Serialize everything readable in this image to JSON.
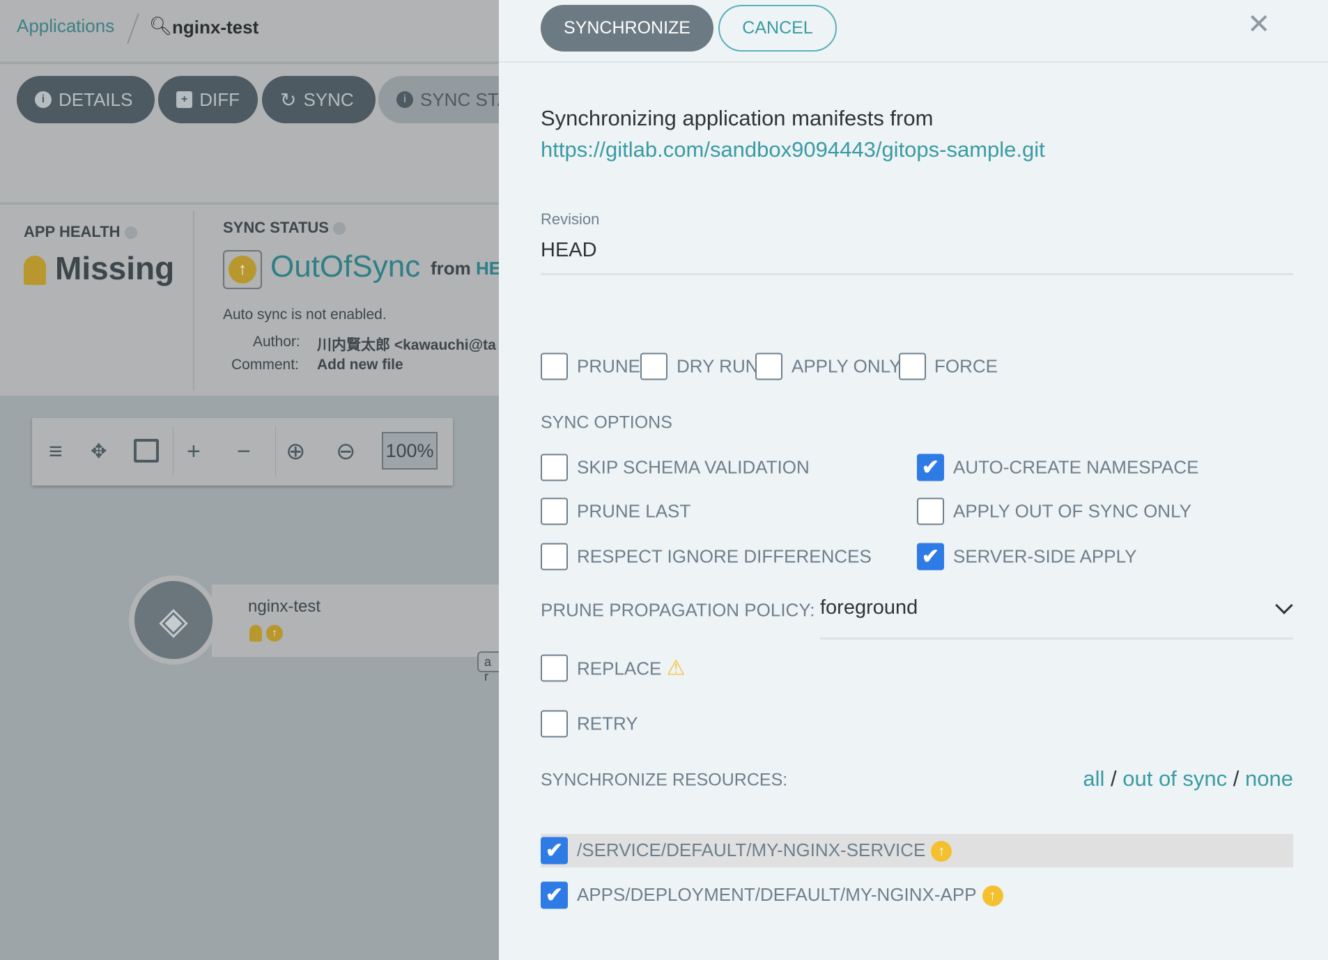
{
  "background": {
    "breadcrumb": {
      "root": "Applications",
      "current": "nginx-test"
    },
    "actions": [
      {
        "label": "DETAILS",
        "icon": "info-icon"
      },
      {
        "label": "DIFF",
        "icon": "file-diff-icon"
      },
      {
        "label": "SYNC",
        "icon": "sync-icon"
      },
      {
        "label": "SYNC STA",
        "icon": "info-icon"
      }
    ],
    "app_health": {
      "title": "APP HEALTH",
      "value": "Missing"
    },
    "sync_status": {
      "title": "SYNC STATUS",
      "value": "OutOfSync",
      "from": "from",
      "revision": "HE",
      "auto_sync": "Auto sync is not enabled.",
      "author_label": "Author:",
      "author": "川内賢太郎 <kawauchi@ta",
      "comment_label": "Comment:",
      "comment": "Add new file"
    },
    "zoom_level": "100%",
    "node": {
      "name": "nginx-test",
      "tag": "a r"
    }
  },
  "panel": {
    "synchronize_label": "SYNCHRONIZE",
    "cancel_label": "CANCEL",
    "intro": "Synchronizing application manifests from",
    "repo_url": "https://gitlab.com/sandbox9094443/gitops-sample.git",
    "revision_label": "Revision",
    "revision_value": "HEAD",
    "flags": [
      {
        "label": "PRUNE",
        "checked": false
      },
      {
        "label": "DRY RUN",
        "checked": false
      },
      {
        "label": "APPLY ONLY",
        "checked": false
      },
      {
        "label": "FORCE",
        "checked": false
      }
    ],
    "sync_options_title": "SYNC OPTIONS",
    "sync_options": [
      {
        "label": "SKIP SCHEMA VALIDATION",
        "checked": false
      },
      {
        "label": "AUTO-CREATE NAMESPACE",
        "checked": true
      },
      {
        "label": "PRUNE LAST",
        "checked": false
      },
      {
        "label": "APPLY OUT OF SYNC ONLY",
        "checked": false
      },
      {
        "label": "RESPECT IGNORE DIFFERENCES",
        "checked": false
      },
      {
        "label": "SERVER-SIDE APPLY",
        "checked": true
      }
    ],
    "prune_policy_label": "PRUNE PROPAGATION POLICY:",
    "prune_policy_value": "foreground",
    "replace_label": "REPLACE",
    "retry_label": "RETRY",
    "resources_title": "SYNCHRONIZE RESOURCES:",
    "select_links": {
      "all": "all",
      "out_of_sync": "out of sync",
      "none": "none",
      "sep": "/"
    },
    "resources": [
      {
        "label": "/SERVICE/DEFAULT/MY-NGINX-SERVICE",
        "checked": true,
        "status": "out-of-sync"
      },
      {
        "label": "APPS/DEPLOYMENT/DEFAULT/MY-NGINX-APP",
        "checked": true,
        "status": "out-of-sync"
      }
    ],
    "colors": {
      "accent": "#3a9ba3",
      "checkbox": "#2f7be5",
      "warning": "#f4c030"
    }
  }
}
